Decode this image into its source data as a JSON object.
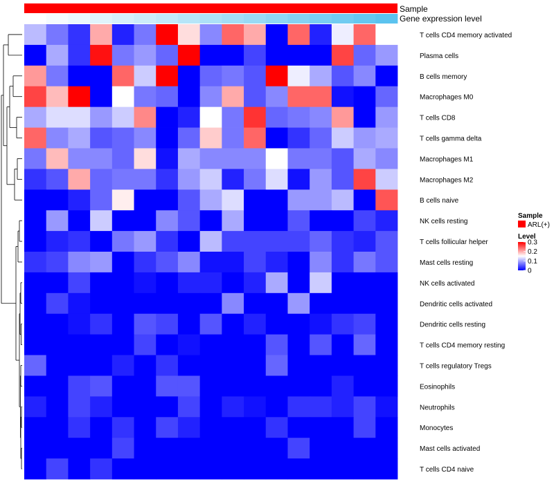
{
  "chart_data": {
    "type": "heatmap",
    "annotation_tracks": [
      {
        "name": "Sample",
        "color": "#ff0000"
      },
      {
        "name": "Gene expression level",
        "gradient": [
          "#ffffff",
          "#5bc3ef"
        ]
      }
    ],
    "legend": {
      "sample_title": "Sample",
      "sample_entry": "ARL(+)",
      "sample_color": "#ff0000",
      "level_title": "Level",
      "ticks": [
        0.3,
        0.2,
        0.1,
        0
      ],
      "tick_labels": [
        "0.3",
        "0.2",
        "0.1",
        "0"
      ],
      "color_low": "#0000ff",
      "color_mid": "#ffffff",
      "color_high": "#ff0000",
      "vmin": 0,
      "vmid": 0.15,
      "vmax": 0.3
    },
    "rows": [
      "T cells CD4 memory activated",
      "Plasma cells",
      "B cells memory",
      "Macrophages M0",
      "T cells CD8",
      "T cells gamma delta",
      "Macrophages M1",
      "Macrophages M2",
      "B cells naive",
      "NK cells resting",
      "T cells follicular helper",
      "Mast cells resting",
      "NK cells activated",
      "Dendritic cells activated",
      "Dendritic cells resting",
      "T cells CD4 memory resting",
      "T cells regulatory  Tregs",
      "Eosinophils",
      "Neutrophils",
      "Monocytes",
      "Mast cells activated",
      "T cells CD4 naive"
    ],
    "values": [
      [
        0.11,
        0.07,
        0.03,
        0.2,
        0.02,
        0.07,
        0.3,
        0.17,
        0.08,
        0.24,
        0.2,
        0.0,
        0.24,
        0.02,
        0.14,
        0.24,
        0.15
      ],
      [
        0.0,
        0.1,
        0.03,
        0.29,
        0.07,
        0.09,
        0.06,
        0.3,
        0.0,
        0.0,
        0.04,
        0.0,
        0.0,
        0.0,
        0.26,
        0.06,
        0.09
      ],
      [
        0.21,
        0.07,
        0.0,
        0.0,
        0.24,
        0.12,
        0.3,
        0.0,
        0.06,
        0.07,
        0.05,
        0.3,
        0.14,
        0.1,
        0.05,
        0.08,
        0.0
      ],
      [
        0.26,
        0.19,
        0.3,
        0.0,
        0.15,
        0.07,
        0.06,
        0.0,
        0.08,
        0.2,
        0.05,
        0.08,
        0.24,
        0.24,
        0.01,
        0.0,
        0.06
      ],
      [
        0.1,
        0.13,
        0.13,
        0.09,
        0.12,
        0.22,
        0.0,
        0.02,
        0.15,
        0.07,
        0.27,
        0.06,
        0.07,
        0.08,
        0.21,
        0.0,
        0.09
      ],
      [
        0.24,
        0.08,
        0.1,
        0.05,
        0.06,
        0.08,
        0.0,
        0.06,
        0.18,
        0.07,
        0.24,
        0.0,
        0.03,
        0.06,
        0.12,
        0.09,
        0.1
      ],
      [
        0.07,
        0.19,
        0.08,
        0.08,
        0.06,
        0.17,
        0.01,
        0.1,
        0.08,
        0.08,
        0.08,
        0.15,
        0.07,
        0.07,
        0.05,
        0.1,
        0.08
      ],
      [
        0.03,
        0.05,
        0.2,
        0.06,
        0.07,
        0.07,
        0.03,
        0.09,
        0.12,
        0.02,
        0.07,
        0.13,
        0.01,
        0.09,
        0.05,
        0.26,
        0.12
      ],
      [
        0.0,
        0.0,
        0.02,
        0.06,
        0.16,
        0.0,
        0.0,
        0.05,
        0.1,
        0.13,
        0.0,
        0.0,
        0.09,
        0.09,
        0.11,
        0.0,
        0.25
      ],
      [
        0.0,
        0.09,
        0.0,
        0.12,
        0.0,
        0.0,
        0.08,
        0.05,
        0.0,
        0.1,
        0.0,
        0.0,
        0.05,
        0.0,
        0.0,
        0.04,
        0.02
      ],
      [
        0.0,
        0.02,
        0.03,
        0.0,
        0.07,
        0.09,
        0.03,
        0.0,
        0.11,
        0.04,
        0.04,
        0.04,
        0.04,
        0.06,
        0.03,
        0.02,
        0.05
      ],
      [
        0.03,
        0.04,
        0.08,
        0.09,
        0.0,
        0.03,
        0.05,
        0.08,
        0.01,
        0.01,
        0.04,
        0.02,
        0.0,
        0.08,
        0.03,
        0.07,
        0.05
      ],
      [
        0.0,
        0.0,
        0.04,
        0.0,
        0.0,
        0.01,
        0.0,
        0.02,
        0.02,
        0.0,
        0.02,
        0.1,
        0.0,
        0.12,
        0.0,
        0.0,
        0.0
      ],
      [
        0.0,
        0.04,
        0.01,
        0.0,
        0.0,
        0.0,
        0.0,
        0.0,
        0.0,
        0.08,
        0.0,
        0.0,
        0.09,
        0.0,
        0.0,
        0.0,
        0.0
      ],
      [
        0.0,
        0.0,
        0.01,
        0.03,
        0.0,
        0.05,
        0.04,
        0.0,
        0.05,
        0.0,
        0.02,
        0.0,
        0.0,
        0.01,
        0.03,
        0.04,
        0.0
      ],
      [
        0.0,
        0.0,
        0.0,
        0.0,
        0.0,
        0.04,
        0.0,
        0.01,
        0.0,
        0.0,
        0.0,
        0.05,
        0.0,
        0.05,
        0.0,
        0.06,
        0.0
      ],
      [
        0.06,
        0.0,
        0.0,
        0.0,
        0.02,
        0.0,
        0.03,
        0.0,
        0.0,
        0.0,
        0.0,
        0.06,
        0.0,
        0.0,
        0.0,
        0.0,
        0.0
      ],
      [
        0.0,
        0.0,
        0.04,
        0.05,
        0.0,
        0.0,
        0.05,
        0.05,
        0.0,
        0.0,
        0.0,
        0.0,
        0.0,
        0.0,
        0.02,
        0.0,
        0.0
      ],
      [
        0.02,
        0.0,
        0.04,
        0.02,
        0.0,
        0.0,
        0.0,
        0.04,
        0.0,
        0.02,
        0.01,
        0.0,
        0.03,
        0.03,
        0.02,
        0.04,
        0.01
      ],
      [
        0.0,
        0.0,
        0.03,
        0.0,
        0.03,
        0.0,
        0.04,
        0.02,
        0.0,
        0.0,
        0.0,
        0.03,
        0.0,
        0.0,
        0.0,
        0.04,
        0.0
      ],
      [
        0.0,
        0.0,
        0.0,
        0.0,
        0.04,
        0.0,
        0.0,
        0.0,
        0.0,
        0.0,
        0.0,
        0.0,
        0.04,
        0.0,
        0.0,
        0.0,
        0.0
      ],
      [
        0.0,
        0.04,
        0.0,
        0.03,
        0.0,
        0.0,
        0.0,
        0.0,
        0.0,
        0.0,
        0.0,
        0.0,
        0.0,
        0.0,
        0.0,
        0.0,
        0.0
      ]
    ]
  }
}
